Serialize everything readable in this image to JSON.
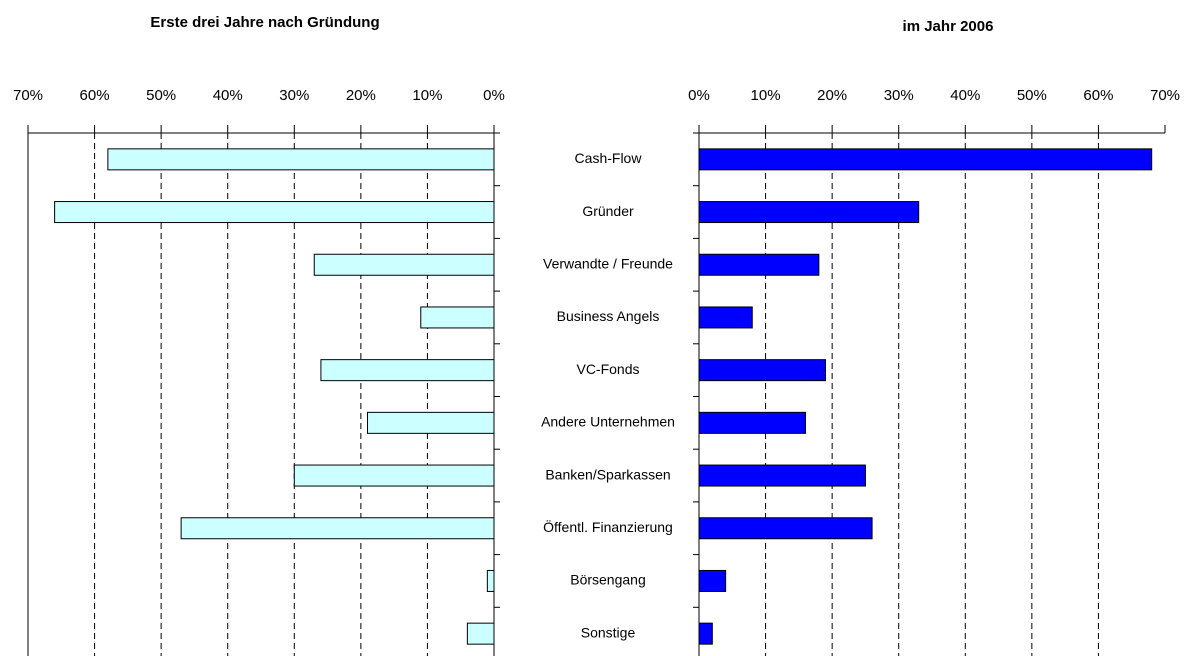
{
  "chart_data": [
    {
      "type": "bar",
      "orientation": "horizontal",
      "title": "Erste drei Jahre nach Gründung",
      "categories": [
        "Cash-Flow",
        "Gründer",
        "Verwandte / Freunde",
        "Business Angels",
        "VC-Fonds",
        "Andere Unternehmen",
        "Banken/Sparkassen",
        "Öffentl. Finanzierung",
        "Börsengang",
        "Sonstige"
      ],
      "values": [
        58,
        66,
        27,
        11,
        26,
        19,
        30,
        47,
        1,
        4
      ],
      "color": "#ccffff",
      "xlim": [
        0,
        70
      ],
      "x_reversed": true,
      "grid": true,
      "xticks": [
        {
          "value": 0,
          "label": "0%"
        },
        {
          "value": 10,
          "label": "10%"
        },
        {
          "value": 20,
          "label": "20%"
        },
        {
          "value": 30,
          "label": "30%"
        },
        {
          "value": 40,
          "label": "40%"
        },
        {
          "value": 50,
          "label": "50%"
        },
        {
          "value": 60,
          "label": "60%"
        },
        {
          "value": 70,
          "label": "70%"
        }
      ]
    },
    {
      "type": "bar",
      "orientation": "horizontal",
      "title": "im Jahr 2006",
      "values": [
        68,
        33,
        18,
        8,
        19,
        16,
        25,
        26,
        4,
        2
      ],
      "color": "#0000ff",
      "xlim": [
        0,
        70
      ],
      "x_reversed": false,
      "grid": true,
      "xticks": [
        {
          "value": 0,
          "label": "0%"
        },
        {
          "value": 10,
          "label": "10%"
        },
        {
          "value": 20,
          "label": "20%"
        },
        {
          "value": 30,
          "label": "30%"
        },
        {
          "value": 40,
          "label": "40%"
        },
        {
          "value": 50,
          "label": "50%"
        },
        {
          "value": 60,
          "label": "60%"
        },
        {
          "value": 70,
          "label": "70%"
        }
      ]
    }
  ]
}
